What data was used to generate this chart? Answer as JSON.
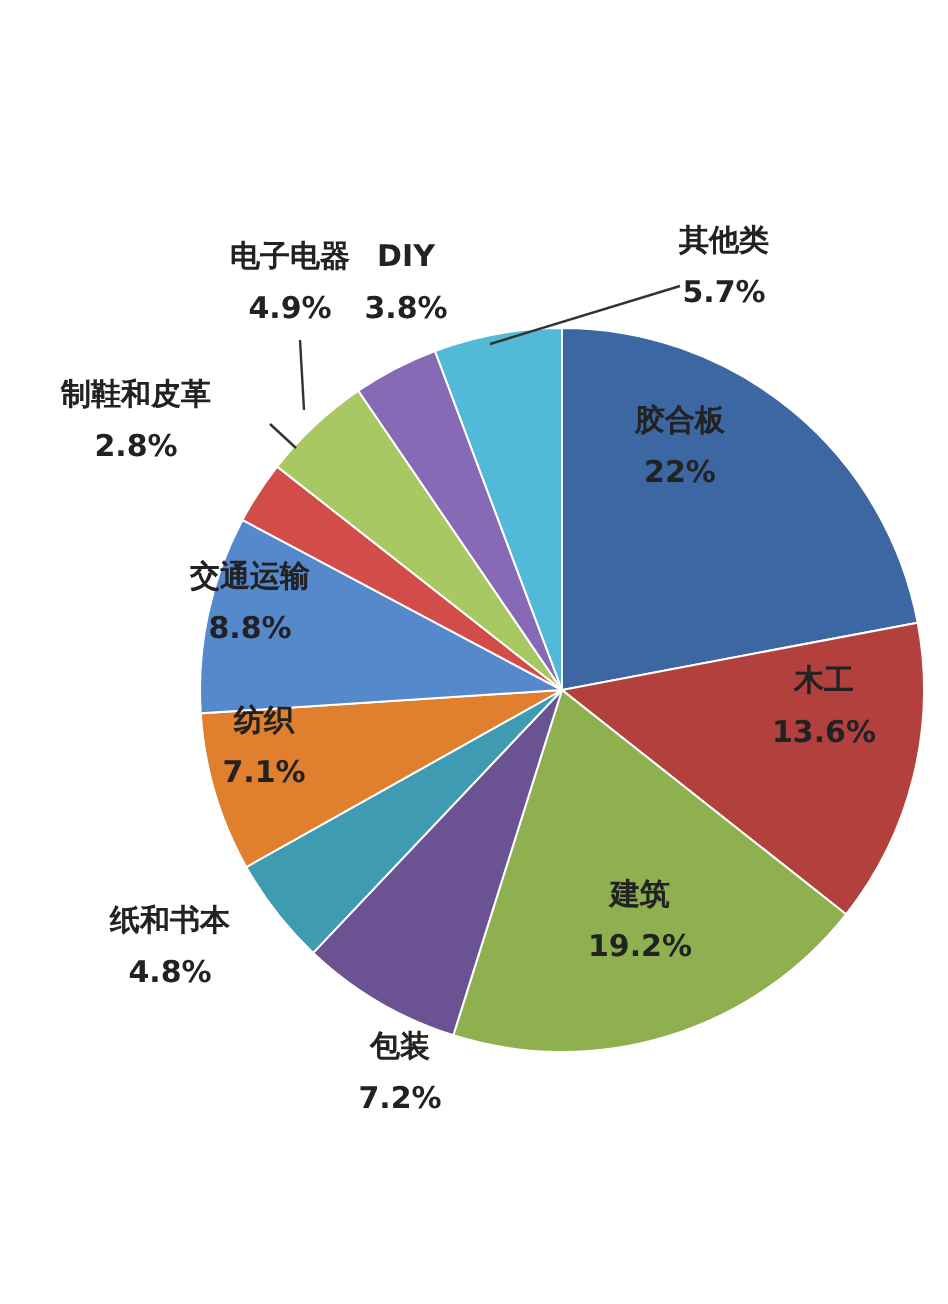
{
  "chart_data": {
    "type": "pie",
    "categories": [
      "胶合板",
      "木工",
      "建筑",
      "包装",
      "纸和书本",
      "纺织",
      "交通运输",
      "制鞋和皮革",
      "电子电器",
      "DIY",
      "其他类"
    ],
    "values": [
      22,
      13.6,
      19.2,
      7.2,
      4.8,
      7.1,
      8.8,
      2.8,
      4.9,
      3.8,
      5.7
    ],
    "colors": [
      "#3d67a3",
      "#b2403d",
      "#8eb04f",
      "#6b5393",
      "#3f9bb2",
      "#e07f2e",
      "#5689cc",
      "#d24c49",
      "#a8c863",
      "#8769b6",
      "#52b9d6"
    ],
    "value_labels": [
      "22%",
      "13.6%",
      "19.2%",
      "7.2%",
      "4.8%",
      "7.1%",
      "8.8%",
      "2.8%",
      "4.9%",
      "3.8%",
      "5.7%"
    ]
  }
}
